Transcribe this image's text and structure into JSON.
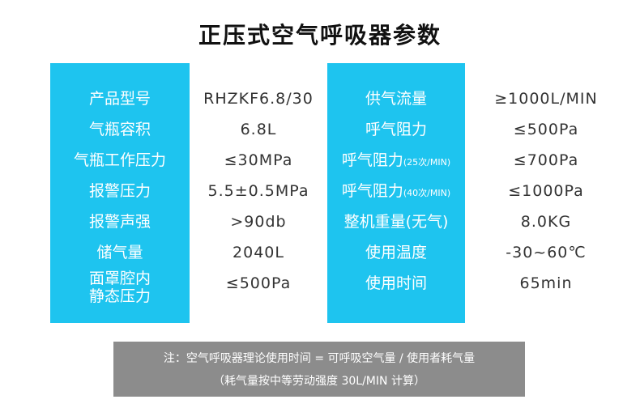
{
  "title": "正压式空气呼吸器参数",
  "rows": [
    {
      "label1": "产品型号",
      "value1": "RHZKF6.8/30",
      "label2": "供气流量",
      "label2_sub": "",
      "value2": "≥1000L/MIN"
    },
    {
      "label1": "气瓶容积",
      "value1": "6.8L",
      "label2": "呼气阻力",
      "label2_sub": "",
      "value2": "≤500Pa"
    },
    {
      "label1": "气瓶工作压力",
      "value1": "≤30MPa",
      "label2": "呼气阻力",
      "label2_sub": "(25次/MIN)",
      "value2": "≤700Pa"
    },
    {
      "label1": "报警压力",
      "value1": "5.5±0.5MPa",
      "label2": "呼气阻力",
      "label2_sub": "(40次/MIN)",
      "value2": "≤1000Pa"
    },
    {
      "label1": "报警声强",
      "value1": ">90db",
      "label2": "整机重量(无气)",
      "label2_sub": "",
      "value2": "8.0KG"
    },
    {
      "label1": "储气量",
      "value1": "2040L",
      "label2": "使用温度",
      "label2_sub": "",
      "value2": "-30~60℃"
    },
    {
      "label1_lines": [
        "面罩腔内",
        "静态压力"
      ],
      "value1": "≤500Pa",
      "label2": "使用时间",
      "label2_sub": "",
      "value2": "65min"
    }
  ],
  "note": {
    "line1": "注：空气呼吸器理论使用时间 = 可呼吸空气量 / 使用者耗气量",
    "line2": "（耗气量按中等劳动强度 30L/MIN 计算）"
  },
  "colors": {
    "accent": "#1ec4ef",
    "note_bg": "#8c8c8c"
  }
}
